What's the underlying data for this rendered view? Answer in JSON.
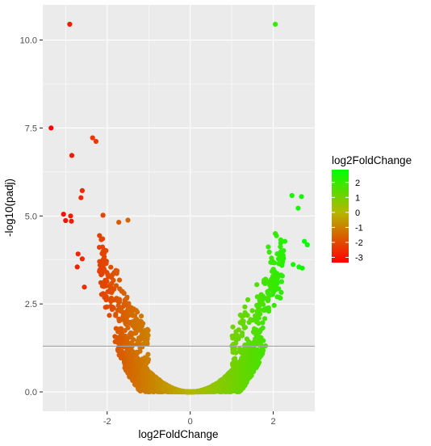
{
  "chart_data": {
    "type": "scatter",
    "title": "",
    "xlabel": "log2FoldChange",
    "ylabel": "-log10(padj)",
    "xlim": [
      -3.55,
      3.0
    ],
    "ylim": [
      -0.55,
      11.0
    ],
    "x_ticks": [
      -2,
      0,
      2
    ],
    "x_tick_labels": [
      "-2",
      "0",
      "2"
    ],
    "y_ticks": [
      0,
      2.5,
      5,
      7.5,
      10
    ],
    "y_tick_labels": [
      "0.0",
      "2.5",
      "5.0",
      "7.5",
      "10.0"
    ],
    "grid": true,
    "reference_line": {
      "y": 1.3,
      "color": "#a6a6a6"
    },
    "colors": {
      "panel_background": "#ebebeb",
      "grid": "#ffffff",
      "low": "#ff0000",
      "mid": "#b5b700",
      "high": "#00ff00"
    },
    "legend": {
      "title": "log2FoldChange",
      "position": "right",
      "breaks": [
        2,
        1,
        0,
        -1,
        -2,
        -3
      ],
      "labels": [
        "2",
        "1",
        "0",
        "-1",
        "-2",
        "-3"
      ],
      "range": [
        -3.35,
        2.85
      ]
    },
    "highlighted_points": [
      {
        "x": -2.9,
        "y": 10.45
      },
      {
        "x": 2.05,
        "y": 10.45
      },
      {
        "x": -3.35,
        "y": 7.5
      },
      {
        "x": -2.35,
        "y": 7.22
      },
      {
        "x": -2.27,
        "y": 7.12
      },
      {
        "x": -2.85,
        "y": 6.72
      },
      {
        "x": -2.6,
        "y": 5.72
      },
      {
        "x": -2.63,
        "y": 5.52
      },
      {
        "x": -3.05,
        "y": 5.05
      },
      {
        "x": -2.88,
        "y": 5.0
      },
      {
        "x": -3.0,
        "y": 4.87
      },
      {
        "x": -2.86,
        "y": 4.85
      },
      {
        "x": -2.1,
        "y": 5.02
      },
      {
        "x": -2.7,
        "y": 3.92
      },
      {
        "x": -2.6,
        "y": 3.78
      },
      {
        "x": -2.72,
        "y": 3.55
      },
      {
        "x": -2.55,
        "y": 2.98
      },
      {
        "x": -1.5,
        "y": 4.88
      },
      {
        "x": -1.72,
        "y": 4.82
      },
      {
        "x": 2.45,
        "y": 5.58
      },
      {
        "x": 2.68,
        "y": 5.55
      },
      {
        "x": 2.6,
        "y": 5.22
      },
      {
        "x": 2.05,
        "y": 4.5
      },
      {
        "x": 2.18,
        "y": 4.32
      },
      {
        "x": 2.28,
        "y": 4.28
      },
      {
        "x": 2.75,
        "y": 4.28
      },
      {
        "x": 2.82,
        "y": 4.18
      },
      {
        "x": 2.62,
        "y": 3.55
      },
      {
        "x": 2.7,
        "y": 3.52
      },
      {
        "x": 2.48,
        "y": 3.62
      },
      {
        "x": 1.88,
        "y": 4.12
      }
    ]
  }
}
